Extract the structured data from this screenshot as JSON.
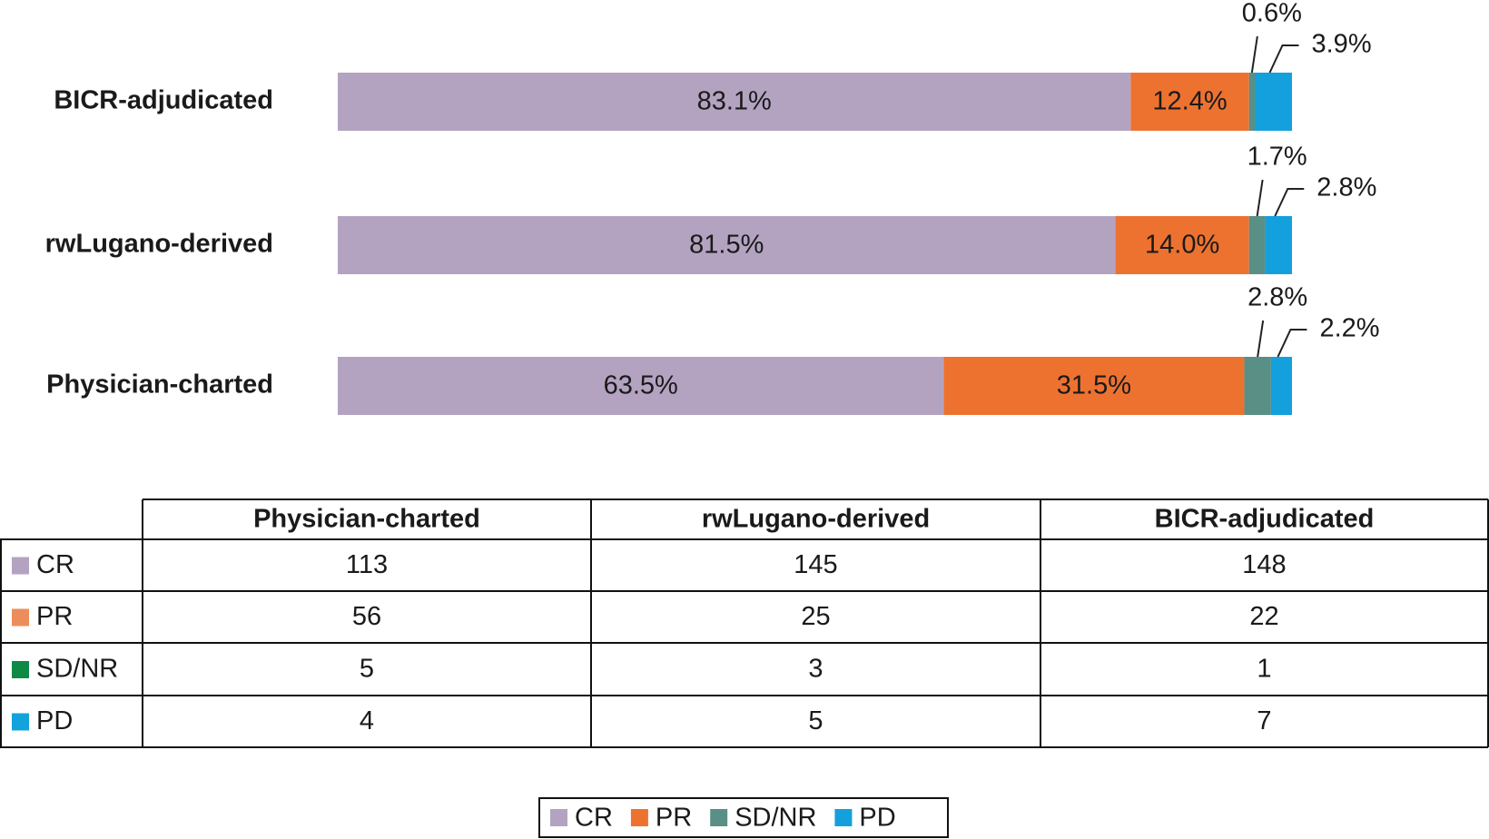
{
  "chart_data": {
    "type": "bar",
    "stacked": true,
    "orientation": "horizontal",
    "categories": [
      "BICR-adjudicated",
      "rwLugano-derived",
      "Physician-charted"
    ],
    "series": [
      {
        "name": "CR",
        "color": "#b3a3c1",
        "values": [
          83.1,
          81.5,
          63.5
        ],
        "value_labels": [
          "83.1%",
          "81.5%",
          "63.5%"
        ]
      },
      {
        "name": "PR",
        "color": "#ed7230",
        "values": [
          12.4,
          14.0,
          31.5
        ],
        "value_labels": [
          "12.4%",
          "14.0%",
          "31.5%"
        ]
      },
      {
        "name": "SD/NR",
        "color": "#5a8f86",
        "values": [
          0.6,
          1.7,
          2.8
        ],
        "value_labels": [
          "0.6%",
          "1.7%",
          "2.8%"
        ]
      },
      {
        "name": "PD",
        "color": "#13a0dd",
        "values": [
          3.9,
          2.8,
          2.2
        ],
        "value_labels": [
          "3.9%",
          "2.8%",
          "2.2%"
        ]
      }
    ]
  },
  "table": {
    "header": [
      "Physician-charted",
      "rwLugano-derived",
      "BICR-adjudicated"
    ],
    "rows": [
      {
        "label": "CR",
        "color": "#b3a3c1",
        "values": [
          113,
          145,
          148
        ]
      },
      {
        "label": "PR",
        "color": "#ec8e5c",
        "values": [
          56,
          25,
          22
        ]
      },
      {
        "label": "SD/NR",
        "color": "#0e8a45",
        "values": [
          5,
          3,
          1
        ]
      },
      {
        "label": "PD",
        "color": "#12a3dc",
        "values": [
          4,
          5,
          7
        ]
      }
    ]
  }
}
